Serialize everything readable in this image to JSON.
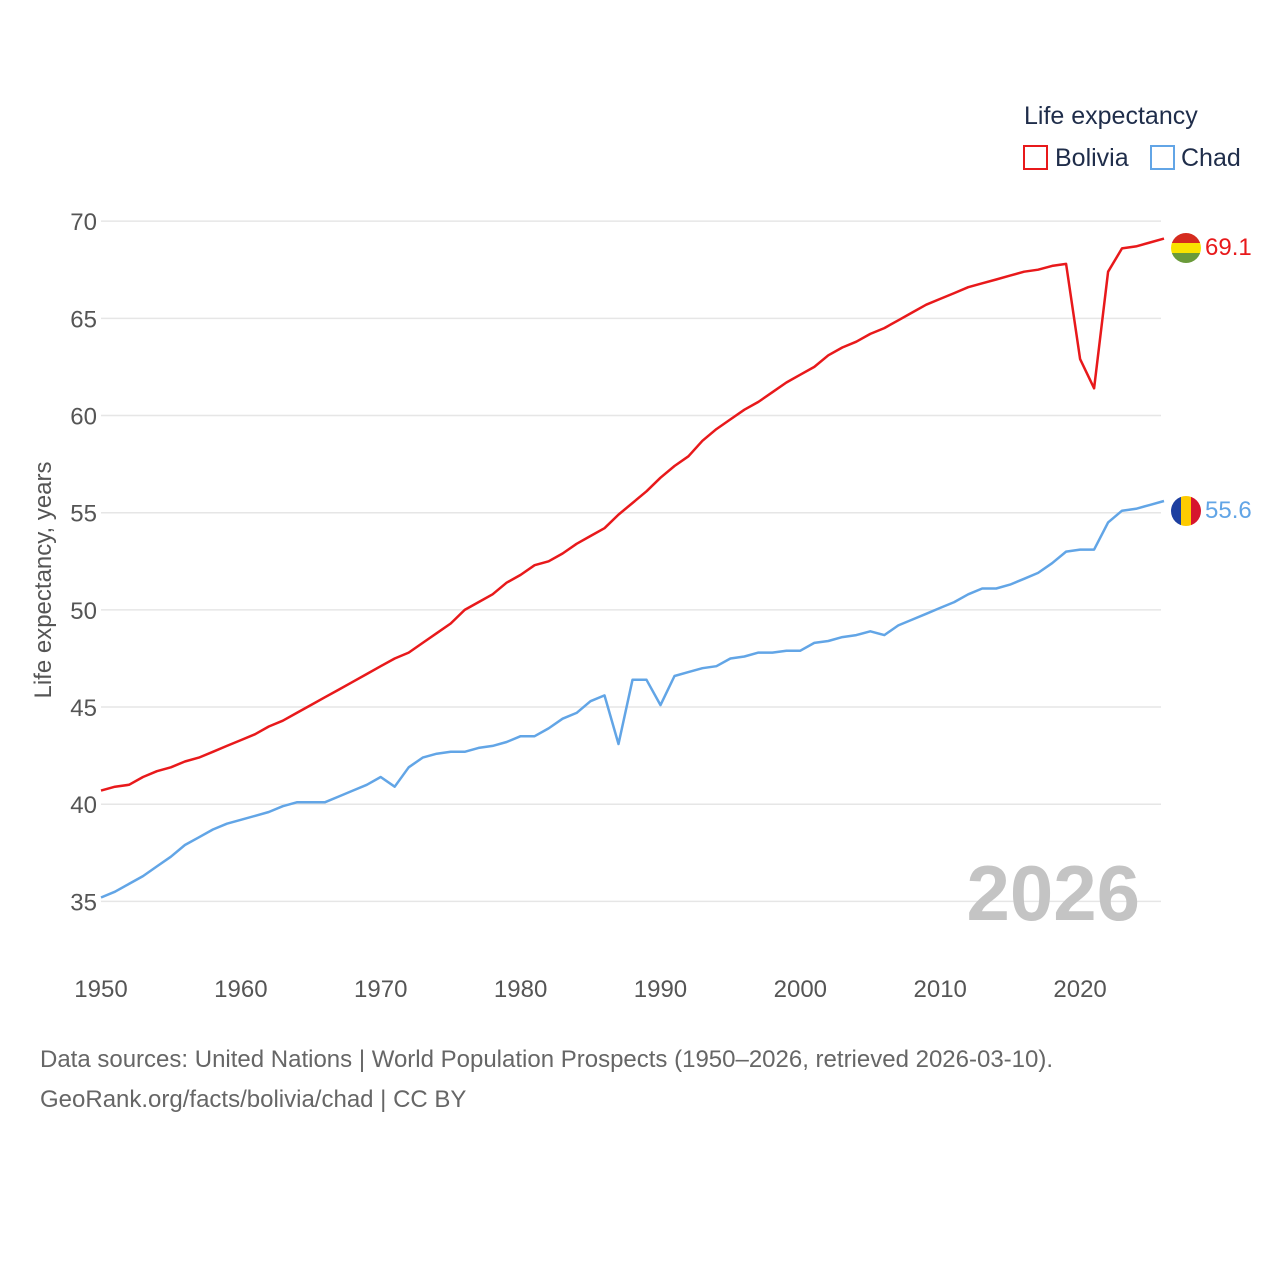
{
  "chart_data": {
    "type": "line",
    "ylabel": "Life expectancy, years",
    "xlabel": "",
    "legend": {
      "title": "Life expectancy",
      "placement": "top-right"
    },
    "xlim": [
      1950,
      2026
    ],
    "ylim": [
      32.5,
      71.5
    ],
    "y_ticks": [
      35,
      40,
      45,
      50,
      55,
      60,
      65,
      70
    ],
    "x_ticks": [
      1950,
      1960,
      1970,
      1980,
      1990,
      2000,
      2010,
      2020
    ],
    "y_tick_labels": [
      "35",
      "40",
      "45",
      "50",
      "55",
      "60",
      "65",
      "70"
    ],
    "x_tick_labels": [
      "1950",
      "1960",
      "1970",
      "1980",
      "1990",
      "2000",
      "2010",
      "2020"
    ],
    "grid": true,
    "year_label": "2026",
    "x": [
      1950,
      1951,
      1952,
      1953,
      1954,
      1955,
      1956,
      1957,
      1958,
      1959,
      1960,
      1961,
      1962,
      1963,
      1964,
      1965,
      1966,
      1967,
      1968,
      1969,
      1970,
      1971,
      1972,
      1973,
      1974,
      1975,
      1976,
      1977,
      1978,
      1979,
      1980,
      1981,
      1982,
      1983,
      1984,
      1985,
      1986,
      1987,
      1988,
      1989,
      1990,
      1991,
      1992,
      1993,
      1994,
      1995,
      1996,
      1997,
      1998,
      1999,
      2000,
      2001,
      2002,
      2003,
      2004,
      2005,
      2006,
      2007,
      2008,
      2009,
      2010,
      2011,
      2012,
      2013,
      2014,
      2015,
      2016,
      2017,
      2018,
      2019,
      2020,
      2021,
      2022,
      2023,
      2024,
      2025,
      2026
    ],
    "series": [
      {
        "name": "Bolivia",
        "color": "#e8191b",
        "end_label": "69.1",
        "values": [
          40.7,
          40.9,
          41.0,
          41.4,
          41.7,
          41.9,
          42.2,
          42.4,
          42.7,
          43.0,
          43.3,
          43.6,
          44.0,
          44.3,
          44.7,
          45.1,
          45.5,
          45.9,
          46.3,
          46.7,
          47.1,
          47.5,
          47.8,
          48.3,
          48.8,
          49.3,
          50.0,
          50.4,
          50.8,
          51.4,
          51.8,
          52.3,
          52.5,
          52.9,
          53.4,
          53.8,
          54.2,
          54.9,
          55.5,
          56.1,
          56.8,
          57.4,
          57.9,
          58.7,
          59.3,
          59.8,
          60.3,
          60.7,
          61.2,
          61.7,
          62.1,
          62.5,
          63.1,
          63.5,
          63.8,
          64.2,
          64.5,
          64.9,
          65.3,
          65.7,
          66.0,
          66.3,
          66.6,
          66.8,
          67.0,
          67.2,
          67.4,
          67.5,
          67.7,
          67.8,
          62.9,
          61.4,
          67.4,
          68.6,
          68.7,
          68.9,
          69.1
        ]
      },
      {
        "name": "Chad",
        "color": "#62a5e6",
        "end_label": "55.6",
        "values": [
          35.2,
          35.5,
          35.9,
          36.3,
          36.8,
          37.3,
          37.9,
          38.3,
          38.7,
          39.0,
          39.2,
          39.4,
          39.6,
          39.9,
          40.1,
          40.1,
          40.1,
          40.4,
          40.7,
          41.0,
          41.4,
          40.9,
          41.9,
          42.4,
          42.6,
          42.7,
          42.7,
          42.9,
          43.0,
          43.2,
          43.5,
          43.5,
          43.9,
          44.4,
          44.7,
          45.3,
          45.6,
          43.1,
          46.4,
          46.4,
          45.1,
          46.6,
          46.8,
          47.0,
          47.1,
          47.5,
          47.6,
          47.8,
          47.8,
          47.9,
          47.9,
          48.3,
          48.4,
          48.6,
          48.7,
          48.9,
          48.7,
          49.2,
          49.5,
          49.8,
          50.1,
          50.4,
          50.8,
          51.1,
          51.1,
          51.3,
          51.6,
          51.9,
          52.4,
          53.0,
          53.1,
          53.1,
          54.5,
          55.1,
          55.2,
          55.4,
          55.6
        ]
      }
    ]
  },
  "footer": {
    "source_line": "Data sources: United Nations | World Population Prospects (1950–2026, retrieved 2026-03-10).",
    "credit_line": "GeoRank.org/facts/bolivia/chad | CC BY"
  }
}
